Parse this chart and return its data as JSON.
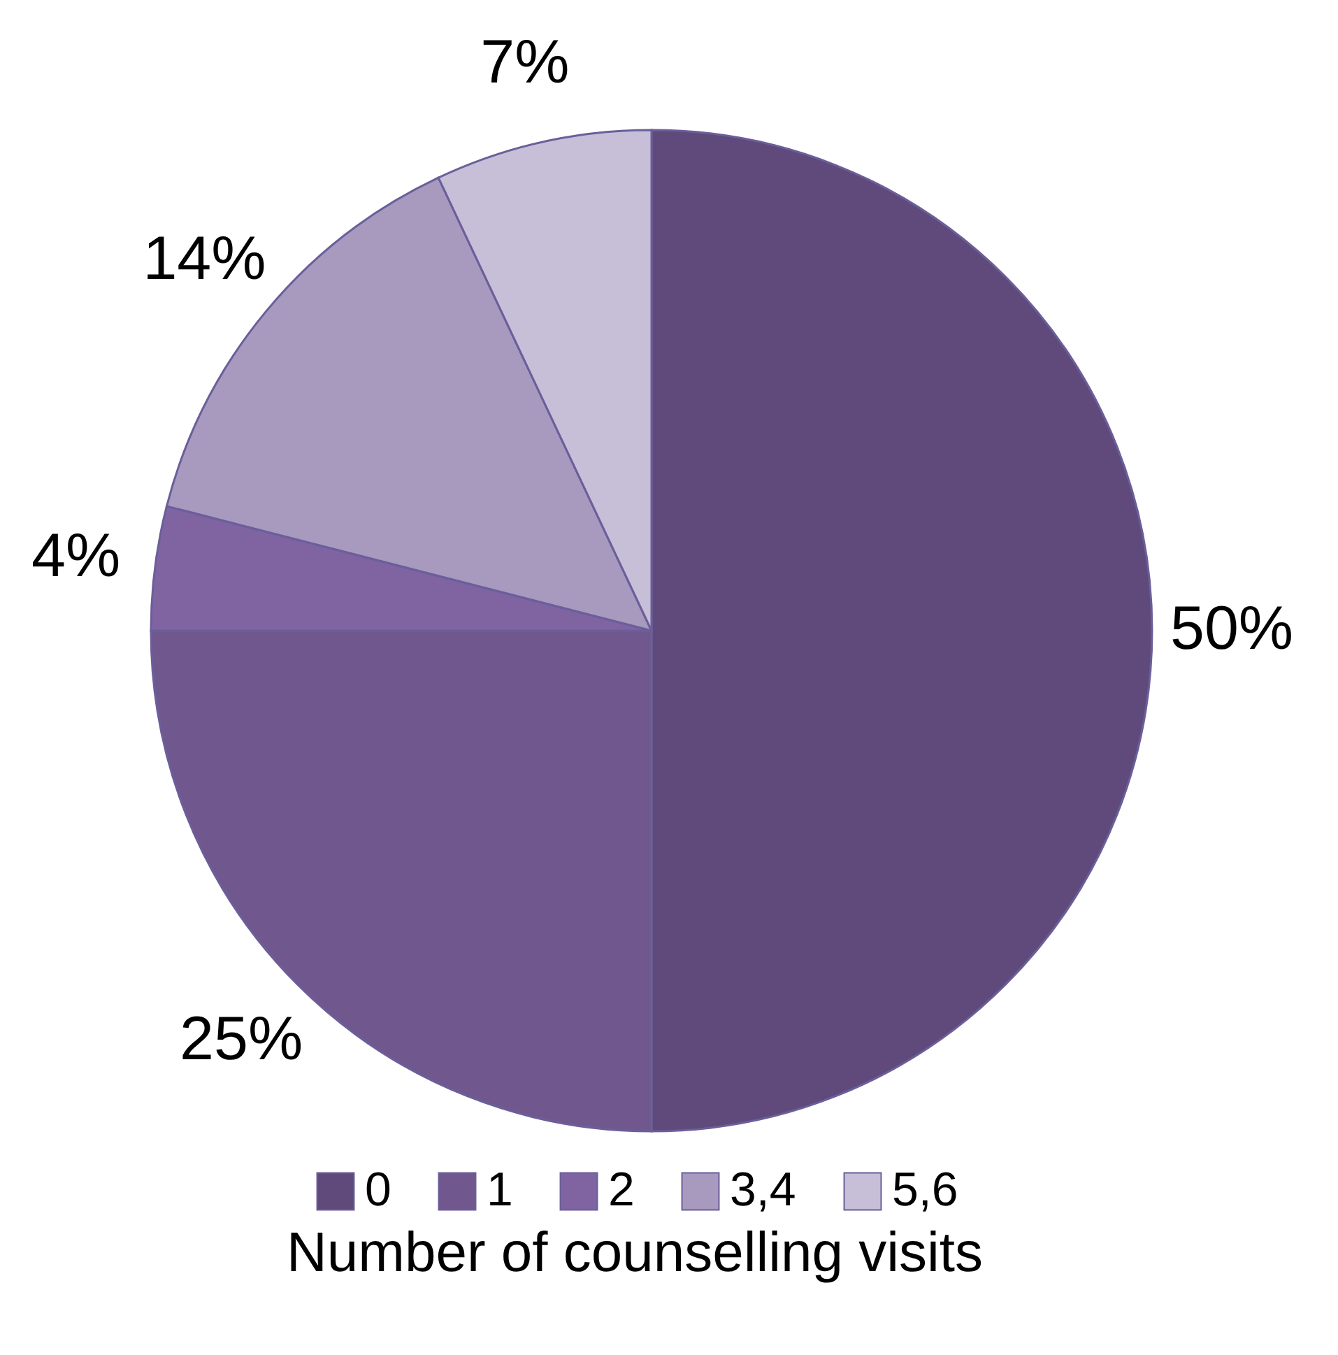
{
  "chart_data": {
    "type": "pie",
    "categories": [
      "0",
      "1",
      "2",
      "3,4",
      "5,6"
    ],
    "values": [
      50,
      25,
      4,
      14,
      7
    ],
    "colors": [
      "#5f4a7b",
      "#70588f",
      "#8064a2",
      "#a899bf",
      "#c6bfd7"
    ],
    "value_labels": [
      "50%",
      "25%",
      "4%",
      "14%",
      "7%"
    ],
    "legend": "bottom",
    "legend_title": "Number of counselling visits"
  }
}
